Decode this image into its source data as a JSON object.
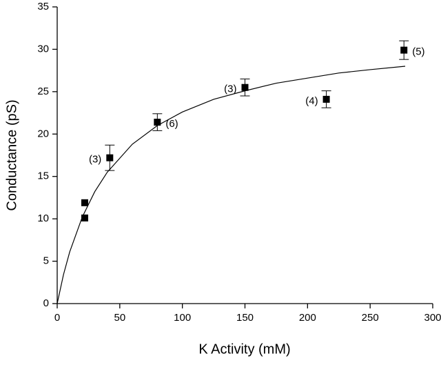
{
  "chart_data": {
    "type": "scatter",
    "xlabel": "K Activity (mM)",
    "ylabel": "Conductance (pS)",
    "xlim": [
      0,
      300
    ],
    "ylim": [
      0,
      35
    ],
    "xticks": [
      0,
      50,
      100,
      150,
      200,
      250,
      300
    ],
    "yticks": [
      0,
      5,
      10,
      15,
      20,
      25,
      30,
      35
    ],
    "color": "#000000",
    "series": [
      {
        "x": [
          22,
          22,
          42,
          80,
          150,
          215,
          277
        ],
        "values": [
          11.9,
          10.1,
          17.2,
          21.4,
          25.5,
          24.1,
          29.9
        ],
        "errors": [
          null,
          null,
          1.5,
          1.0,
          1.0,
          1.0,
          1.1
        ],
        "annotations": [
          null,
          null,
          "(3)",
          "(6)",
          "(3)",
          "(4)",
          "(5)"
        ]
      }
    ],
    "fit": {
      "x": [
        0,
        5,
        10,
        20,
        30,
        40,
        60,
        80,
        100,
        125,
        150,
        175,
        200,
        225,
        250,
        278
      ],
      "values": [
        0,
        3.4,
        6.1,
        10.2,
        13.2,
        15.5,
        18.8,
        21.0,
        22.6,
        24.1,
        25.1,
        26.0,
        26.6,
        27.2,
        27.6,
        28.0
      ]
    }
  }
}
